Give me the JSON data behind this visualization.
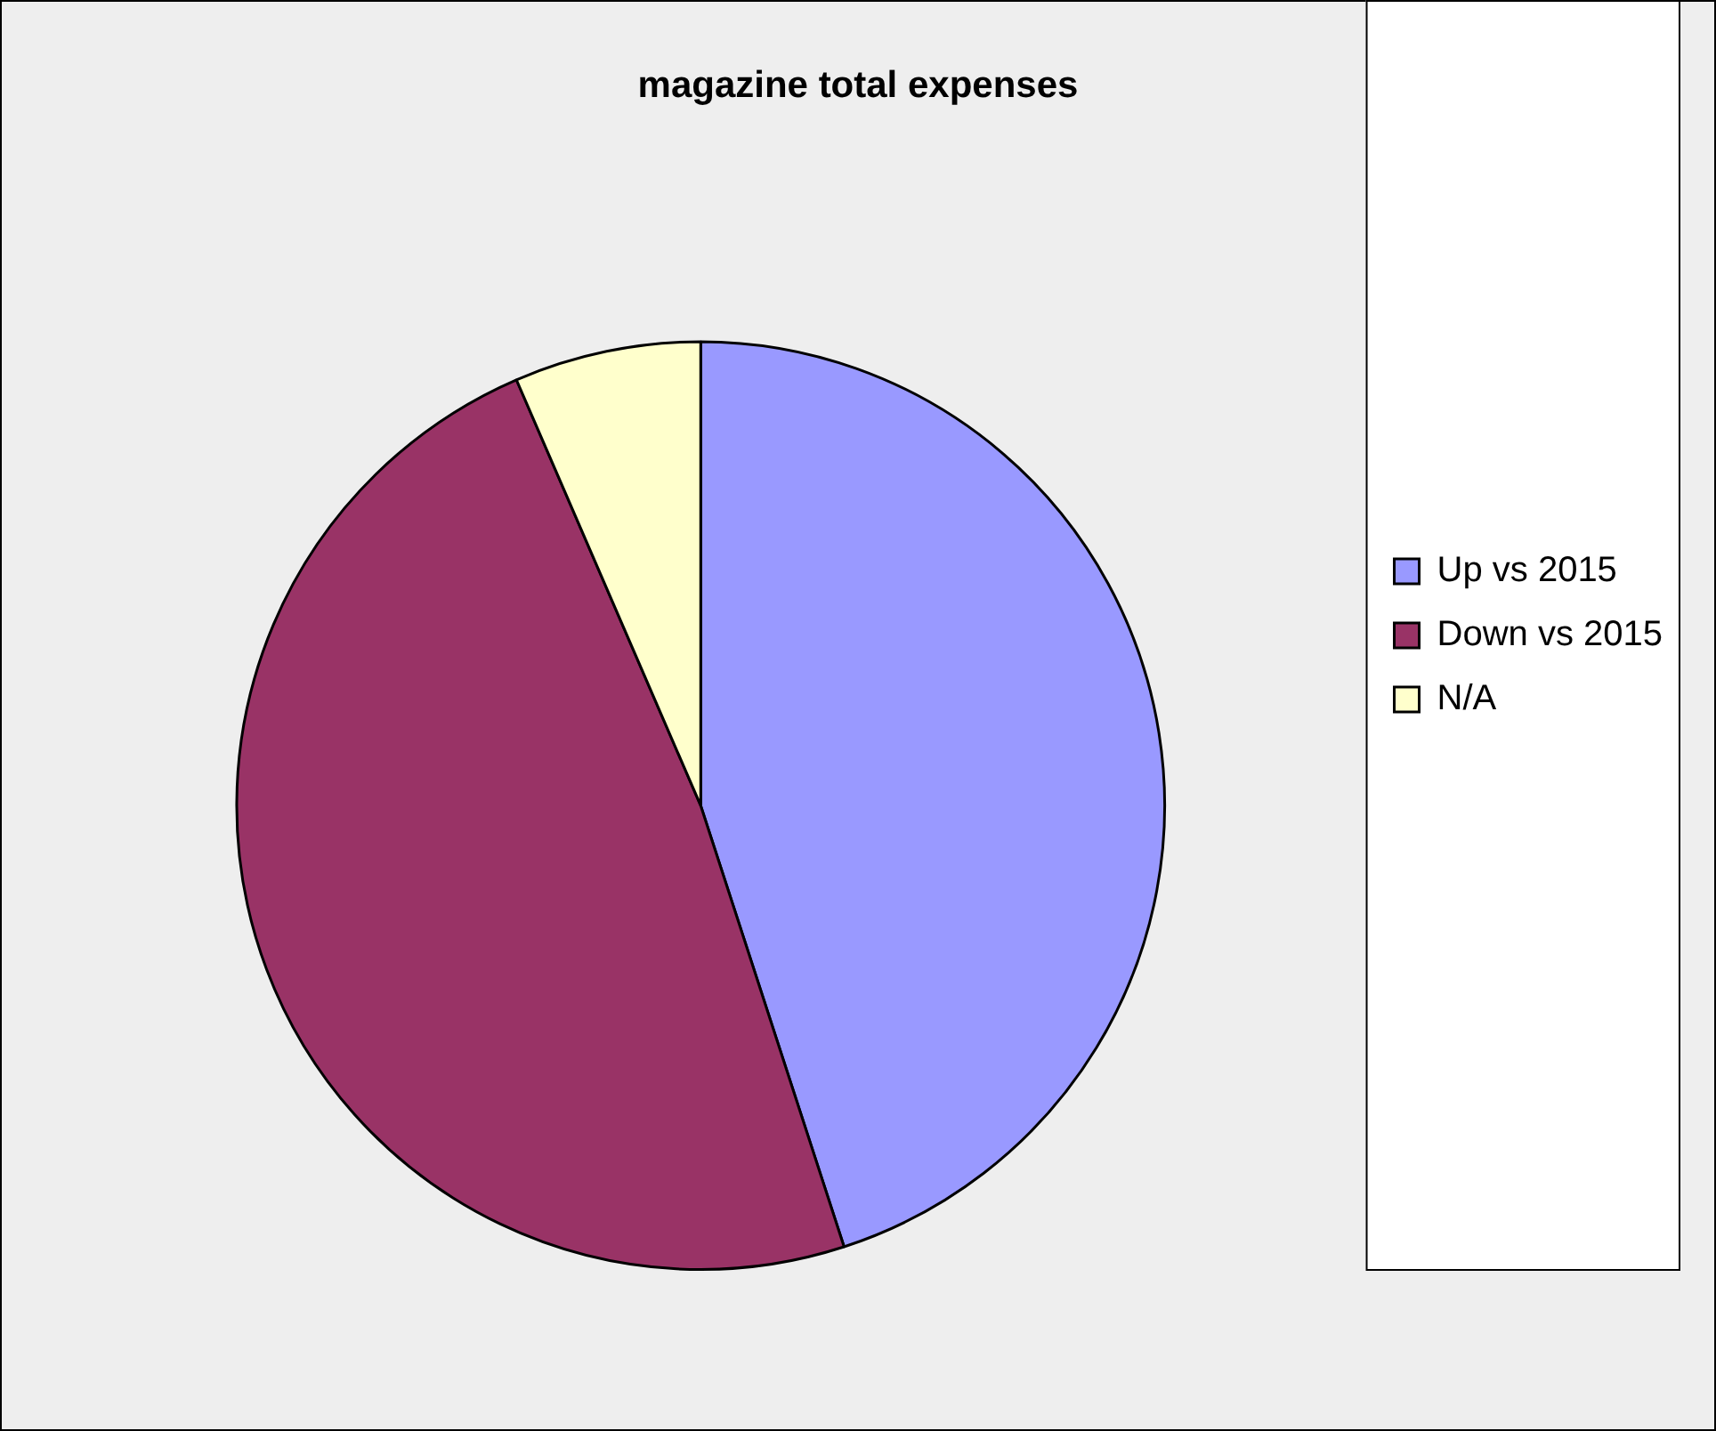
{
  "chart_data": {
    "type": "pie",
    "title": "magazine total expenses",
    "categories": [
      "Up vs 2015",
      "Down vs 2015",
      "N/A"
    ],
    "values": [
      45,
      48.5,
      6.5
    ],
    "colors": [
      "#9999ff",
      "#993366",
      "#ffffcc"
    ],
    "legend": "right"
  }
}
